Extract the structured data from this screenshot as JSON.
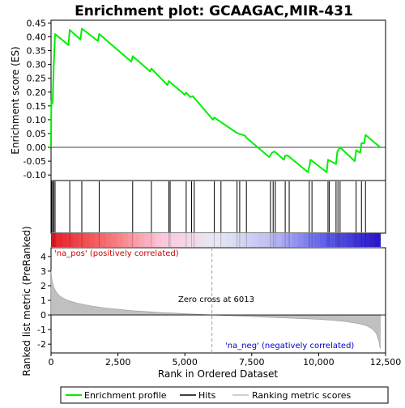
{
  "colors": {
    "enrichment_line": "#00ee00",
    "hits": "#000000",
    "ranking_fill": "#c0c0c0",
    "pos_label": "#cc0000",
    "neg_label": "#0000cc",
    "zero_line": "#000000",
    "dashed": "#a0a0a0"
  },
  "chart_data": [
    {
      "panel": "enrichment-profile",
      "type": "line",
      "title": "Enrichment plot: GCAAGAC,MIR-431",
      "ylabel": "Enrichment score (ES)",
      "xlim": [
        0,
        12500
      ],
      "ylim": [
        -0.12,
        0.46
      ],
      "yticks": [
        "-0.10",
        "-0.05",
        "0.00",
        "0.05",
        "0.10",
        "0.15",
        "0.20",
        "0.25",
        "0.30",
        "0.35",
        "0.40",
        "0.45"
      ],
      "series": [
        {
          "name": "Enrichment profile",
          "x": [
            0,
            10,
            20,
            60,
            100,
            150,
            650,
            700,
            1100,
            1150,
            1750,
            1800,
            3000,
            3050,
            3700,
            3750,
            4350,
            4400,
            5000,
            5050,
            5200,
            5300,
            6050,
            6100,
            6900,
            7000,
            7250,
            7300,
            8150,
            8250,
            8350,
            8700,
            8750,
            8850,
            9600,
            9650,
            9700,
            10300,
            10350,
            10650,
            10700,
            10800,
            11350,
            11400,
            11550,
            11600,
            11700,
            11750,
            12300
          ],
          "y": [
            0.0,
            0.16,
            0.17,
            0.16,
            0.29,
            0.41,
            0.37,
            0.425,
            0.39,
            0.43,
            0.385,
            0.41,
            0.31,
            0.33,
            0.275,
            0.285,
            0.225,
            0.24,
            0.19,
            0.198,
            0.182,
            0.185,
            0.1,
            0.108,
            0.055,
            0.05,
            0.042,
            0.035,
            -0.035,
            -0.02,
            -0.015,
            -0.045,
            -0.03,
            -0.03,
            -0.09,
            -0.07,
            -0.045,
            -0.09,
            -0.045,
            -0.06,
            -0.015,
            0.0,
            -0.05,
            -0.01,
            -0.02,
            0.015,
            0.015,
            0.045,
            0.0
          ]
        }
      ]
    },
    {
      "panel": "hits",
      "type": "scatter",
      "x": [
        20,
        60,
        100,
        150,
        700,
        1150,
        1800,
        3050,
        3750,
        4400,
        4450,
        5050,
        5250,
        5350,
        6100,
        6350,
        6950,
        7050,
        7300,
        8200,
        8300,
        8380,
        8750,
        8900,
        9650,
        9750,
        10350,
        10400,
        10650,
        10720,
        10800,
        11400,
        11600,
        11750
      ],
      "gradient": [
        "#e8202a",
        "#f57070",
        "#fbc7dc",
        "#e8e8f4",
        "#c0c0f4",
        "#6060ea",
        "#2818c8"
      ]
    },
    {
      "panel": "ranked-list",
      "type": "area",
      "xlabel": "Rank in Ordered Dataset",
      "ylabel": "Ranked list metric (PreRanked)",
      "xlim": [
        0,
        12500
      ],
      "ylim": [
        -2.6,
        4.6
      ],
      "xticks": [
        "0",
        "2,500",
        "5,000",
        "7,500",
        "10,000",
        "12,500"
      ],
      "yticks": [
        "-2",
        "-1",
        "0",
        "1",
        "2",
        "3",
        "4"
      ],
      "x": [
        0,
        20,
        50,
        100,
        200,
        300,
        400,
        600,
        800,
        1000,
        1500,
        2000,
        3000,
        4000,
        5000,
        6013,
        7000,
        8000,
        9000,
        10000,
        10500,
        11000,
        11500,
        11800,
        12000,
        12150,
        12250,
        12300
      ],
      "y": [
        3.05,
        2.6,
        2.25,
        1.9,
        1.55,
        1.35,
        1.2,
        1.02,
        0.9,
        0.8,
        0.62,
        0.48,
        0.3,
        0.18,
        0.09,
        0.0,
        -0.07,
        -0.15,
        -0.22,
        -0.3,
        -0.36,
        -0.45,
        -0.6,
        -0.75,
        -0.95,
        -1.25,
        -1.8,
        -2.3
      ],
      "zero_cross_x": 6013,
      "annotations": {
        "pos": "'na_pos' (positively correlated)",
        "neg": "'na_neg' (negatively correlated)",
        "zero_cross": "Zero cross at 6013"
      }
    }
  ],
  "legend": {
    "items": [
      {
        "label": "Enrichment profile",
        "color": "#00ee00"
      },
      {
        "label": "Hits",
        "color": "#000000"
      },
      {
        "label": "Ranking metric scores",
        "color": "#c0c0c0"
      }
    ]
  }
}
